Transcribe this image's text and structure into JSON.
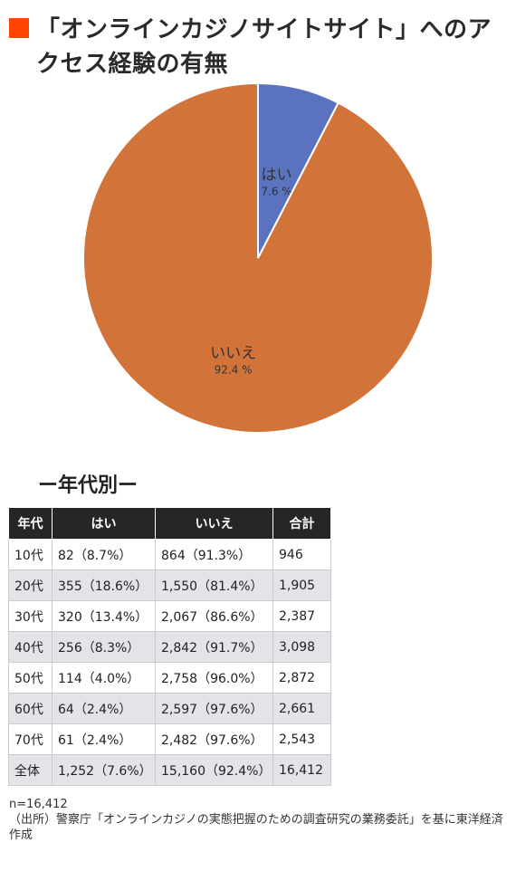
{
  "title": "「オンラインカジノサイトサイト」へのアクセス経験の有無",
  "chart_data": {
    "type": "pie",
    "title": "「オンラインカジノサイトサイト」へのアクセス経験の有無",
    "slices": [
      {
        "label": "はい",
        "value": 7.6,
        "display": "7.6 %",
        "color": "#5b72bf"
      },
      {
        "label": "いいえ",
        "value": 92.4,
        "display": "92.4 %",
        "color": "#d2743a"
      }
    ]
  },
  "table": {
    "heading": "ー年代別ー",
    "columns": [
      "年代",
      "はい",
      "いいえ",
      "合計"
    ],
    "rows": [
      [
        "10代",
        "82（8.7%）",
        "864（91.3%）",
        "946"
      ],
      [
        "20代",
        "355（18.6%）",
        "1,550（81.4%）",
        "1,905"
      ],
      [
        "30代",
        "320（13.4%）",
        "2,067（86.6%）",
        "2,387"
      ],
      [
        "40代",
        "256（8.3%）",
        "2,842（91.7%）",
        "3,098"
      ],
      [
        "50代",
        "114（4.0%）",
        "2,758（96.0%）",
        "2,872"
      ],
      [
        "60代",
        "64（2.4%）",
        "2,597（97.6%）",
        "2,661"
      ],
      [
        "70代",
        "61（2.4%）",
        "2,482（97.6%）",
        "2,543"
      ],
      [
        "全体",
        "1,252（7.6%）",
        "15,160（92.4%）",
        "16,412"
      ]
    ]
  },
  "notes": {
    "n": "n=16,412",
    "source": "（出所）警察庁「オンラインカジノの実態把握のための調査研究の業務委託」を基に東洋経済作成"
  }
}
